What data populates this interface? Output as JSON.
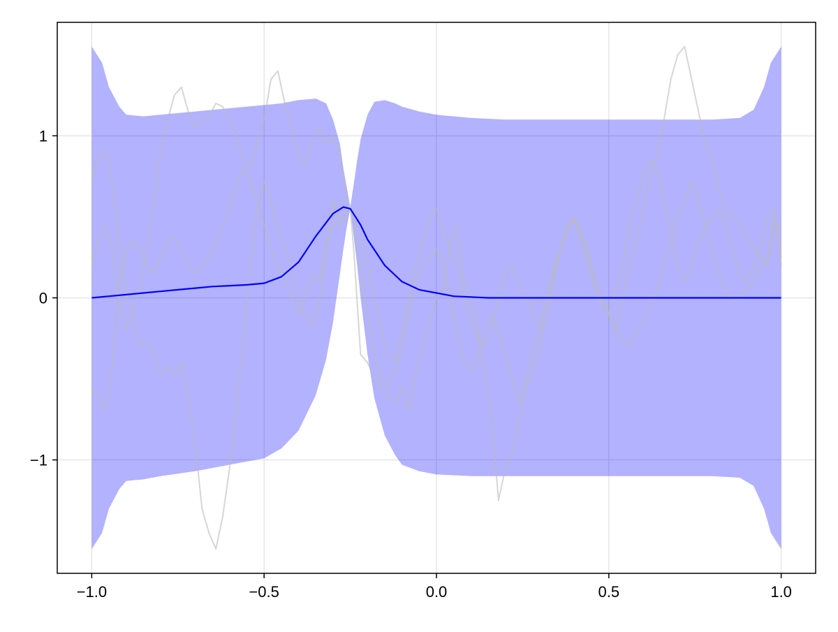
{
  "chart_data": {
    "type": "line",
    "title": "",
    "xlabel": "",
    "ylabel": "",
    "xlim": [
      -1.1,
      1.1
    ],
    "ylim": [
      -1.7,
      1.7
    ],
    "grid": true,
    "legend": "none",
    "x_ticks": [
      {
        "value": -1.0,
        "label": "−1.0"
      },
      {
        "value": -0.5,
        "label": "−0.5"
      },
      {
        "value": 0.0,
        "label": "0.0"
      },
      {
        "value": 0.5,
        "label": "0.5"
      },
      {
        "value": 1.0,
        "label": "1.0"
      }
    ],
    "y_ticks": [
      {
        "value": -1,
        "label": "−1"
      },
      {
        "value": 0,
        "label": "0"
      },
      {
        "value": 1,
        "label": "1"
      }
    ],
    "colors": {
      "band": "#0000ff",
      "band_opacity": 0.3,
      "mean": "#0000ff",
      "samples": "#bbbbbb",
      "grid": "#e6e6e6",
      "frame": "#000000"
    },
    "band": {
      "x": [
        -1.0,
        -0.97,
        -0.95,
        -0.92,
        -0.9,
        -0.85,
        -0.8,
        -0.7,
        -0.6,
        -0.5,
        -0.45,
        -0.4,
        -0.35,
        -0.32,
        -0.3,
        -0.28,
        -0.27,
        -0.26,
        -0.25,
        -0.24,
        -0.23,
        -0.22,
        -0.2,
        -0.18,
        -0.15,
        -0.12,
        -0.1,
        -0.05,
        0.0,
        0.1,
        0.2,
        0.4,
        0.6,
        0.8,
        0.88,
        0.92,
        0.95,
        0.97,
        1.0
      ],
      "upper": [
        1.55,
        1.45,
        1.3,
        1.18,
        1.13,
        1.12,
        1.13,
        1.15,
        1.17,
        1.19,
        1.2,
        1.22,
        1.23,
        1.2,
        1.1,
        0.95,
        0.8,
        0.68,
        0.56,
        0.7,
        0.85,
        0.98,
        1.13,
        1.21,
        1.22,
        1.2,
        1.18,
        1.15,
        1.13,
        1.11,
        1.1,
        1.1,
        1.1,
        1.1,
        1.11,
        1.16,
        1.3,
        1.45,
        1.55
      ],
      "lower": [
        -1.55,
        -1.45,
        -1.3,
        -1.18,
        -1.13,
        -1.12,
        -1.1,
        -1.07,
        -1.03,
        -0.99,
        -0.93,
        -0.82,
        -0.6,
        -0.38,
        -0.15,
        0.15,
        0.3,
        0.44,
        0.55,
        0.38,
        0.2,
        0.0,
        -0.35,
        -0.62,
        -0.85,
        -0.97,
        -1.03,
        -1.07,
        -1.09,
        -1.1,
        -1.1,
        -1.1,
        -1.1,
        -1.1,
        -1.11,
        -1.16,
        -1.3,
        -1.45,
        -1.55
      ]
    },
    "series": [
      {
        "x": [
          -1.0,
          -0.95,
          -0.9,
          -0.85,
          -0.8,
          -0.75,
          -0.7,
          -0.65,
          -0.6,
          -0.55,
          -0.5,
          -0.45,
          -0.4,
          -0.35,
          -0.3,
          -0.27,
          -0.25,
          -0.22,
          -0.2,
          -0.15,
          -0.1,
          -0.05,
          0.0,
          0.05,
          0.1,
          0.15,
          0.2,
          0.25,
          0.3,
          0.35,
          0.4,
          0.45,
          0.5,
          0.55,
          0.6,
          0.65,
          0.7,
          0.75,
          0.8,
          0.85,
          0.9,
          0.95,
          1.0
        ],
        "values": [
          0.0,
          0.01,
          0.02,
          0.03,
          0.04,
          0.05,
          0.06,
          0.07,
          0.075,
          0.08,
          0.09,
          0.13,
          0.22,
          0.38,
          0.52,
          0.56,
          0.55,
          0.45,
          0.36,
          0.2,
          0.1,
          0.05,
          0.03,
          0.01,
          0.005,
          0.0,
          0.0,
          0.0,
          0.0,
          0.0,
          0.0,
          0.0,
          0.0,
          0.0,
          0.0,
          0.0,
          0.0,
          0.0,
          0.0,
          0.0,
          0.0,
          0.0,
          0.0
        ]
      }
    ],
    "samples": [
      {
        "x": [
          -1.0,
          -0.98,
          -0.96,
          -0.94,
          -0.92,
          -0.9,
          -0.88,
          -0.86,
          -0.84,
          -0.82,
          -0.8,
          -0.78,
          -0.76,
          -0.74,
          -0.72,
          -0.7,
          -0.68,
          -0.66,
          -0.64,
          -0.62,
          -0.6,
          -0.58,
          -0.56,
          -0.54,
          -0.52,
          -0.5,
          -0.48,
          -0.46,
          -0.44,
          -0.42,
          -0.4,
          -0.38,
          -0.36,
          -0.34,
          -0.32,
          -0.3,
          -0.28,
          -0.26,
          -0.25,
          -0.24,
          -0.22,
          -0.2,
          -0.18,
          -0.16,
          -0.14,
          -0.12,
          -0.1,
          -0.08,
          -0.06,
          -0.04,
          -0.02,
          0.0,
          0.02,
          0.04,
          0.06,
          0.08,
          0.1,
          0.12,
          0.14,
          0.16,
          0.18,
          0.2,
          0.22,
          0.24,
          0.26,
          0.28,
          0.3,
          0.32,
          0.34,
          0.36,
          0.38,
          0.4,
          0.42,
          0.44,
          0.46,
          0.48,
          0.5,
          0.52,
          0.54,
          0.56,
          0.58,
          0.6,
          0.62,
          0.64,
          0.66,
          0.68,
          0.7,
          0.72,
          0.74,
          0.76,
          0.78,
          0.8,
          0.82,
          0.84,
          0.86,
          0.88,
          0.9,
          0.92,
          0.94,
          0.96,
          0.98,
          1.0
        ],
        "values": [
          0.73,
          0.88,
          0.9,
          0.7,
          0.35,
          0.0,
          -0.12,
          -0.3,
          -0.28,
          -0.35,
          -0.47,
          -0.42,
          -0.48,
          -0.4,
          -0.6,
          -0.9,
          -1.3,
          -1.45,
          -1.55,
          -1.35,
          -1.05,
          -0.65,
          -0.25,
          0.2,
          0.55,
          0.72,
          0.6,
          0.42,
          0.3,
          0.18,
          0.0,
          -0.1,
          -0.18,
          -0.03,
          0.3,
          0.6,
          0.45,
          0.5,
          0.55,
          0.3,
          -0.35,
          -0.4,
          -0.5,
          -0.55,
          -0.6,
          -0.65,
          -0.55,
          -0.7,
          -0.45,
          -0.3,
          -0.15,
          0.0,
          0.05,
          0.35,
          0.45,
          0.1,
          0.0,
          -0.2,
          -0.45,
          -0.75,
          -1.25,
          -1.05,
          -0.95,
          -0.75,
          -0.5,
          -0.3,
          -0.2,
          0.0,
          0.2,
          0.3,
          0.45,
          0.5,
          0.35,
          0.2,
          0.05,
          -0.05,
          -0.1,
          -0.2,
          0.0,
          0.2,
          0.35,
          0.55,
          0.75,
          0.88,
          1.1,
          1.35,
          1.5,
          1.55,
          1.35,
          1.15,
          0.95,
          0.85,
          0.65,
          0.55,
          0.5,
          0.45,
          0.38,
          0.3,
          0.25,
          0.2,
          0.45,
          0.43
        ]
      },
      {
        "x": [
          -1.0,
          -0.98,
          -0.96,
          -0.94,
          -0.92,
          -0.9,
          -0.88,
          -0.86,
          -0.84,
          -0.82,
          -0.8,
          -0.78,
          -0.76,
          -0.74,
          -0.72,
          -0.7,
          -0.68,
          -0.66,
          -0.64,
          -0.62,
          -0.6,
          -0.58,
          -0.56,
          -0.54,
          -0.52,
          -0.5,
          -0.48,
          -0.46,
          -0.44,
          -0.42,
          -0.4,
          -0.38,
          -0.36,
          -0.34,
          -0.32,
          -0.3,
          -0.28,
          -0.26,
          -0.25,
          -0.24,
          -0.22,
          -0.2,
          -0.18,
          -0.16,
          -0.14,
          -0.12,
          -0.1,
          -0.08,
          -0.06,
          -0.04,
          -0.02,
          0.0,
          0.02,
          0.04,
          0.06,
          0.08,
          0.1,
          0.12,
          0.14,
          0.16,
          0.18,
          0.2,
          0.22,
          0.24,
          0.26,
          0.28,
          0.3,
          0.32,
          0.34,
          0.36,
          0.38,
          0.4,
          0.42,
          0.44,
          0.46,
          0.48,
          0.5,
          0.52,
          0.54,
          0.56,
          0.58,
          0.6,
          0.62,
          0.64,
          0.66,
          0.68,
          0.7,
          0.72,
          0.74,
          0.76,
          0.78,
          0.8,
          0.82,
          0.84,
          0.86,
          0.88,
          0.9,
          0.92,
          0.94,
          0.96,
          0.98,
          1.0
        ],
        "values": [
          0.2,
          0.35,
          0.45,
          0.3,
          0.0,
          -0.2,
          -0.1,
          0.1,
          0.3,
          0.6,
          0.9,
          1.1,
          1.25,
          1.3,
          1.15,
          1.05,
          1.08,
          1.12,
          1.2,
          1.18,
          1.1,
          1.0,
          0.85,
          0.8,
          0.95,
          1.1,
          1.35,
          1.4,
          1.2,
          1.05,
          0.88,
          0.82,
          0.95,
          1.05,
          0.95,
          1.0,
          0.9,
          0.6,
          0.55,
          0.5,
          0.2,
          -0.1,
          -0.35,
          -0.5,
          -0.55,
          -0.45,
          -0.3,
          -0.1,
          0.1,
          0.2,
          0.25,
          0.3,
          0.2,
          0.0,
          -0.2,
          -0.4,
          -0.45,
          -0.35,
          -0.2,
          -0.1,
          -0.2,
          -0.35,
          -0.5,
          -0.65,
          -0.55,
          -0.45,
          -0.3,
          -0.1,
          0.1,
          0.3,
          0.45,
          0.5,
          0.4,
          0.25,
          0.1,
          0.0,
          -0.1,
          -0.2,
          -0.25,
          -0.3,
          -0.2,
          -0.15,
          -0.05,
          0.05,
          0.2,
          0.35,
          0.5,
          0.6,
          0.72,
          0.6,
          0.45,
          0.3,
          0.15,
          0.05,
          -0.02,
          0.0,
          0.05,
          0.1,
          0.2,
          0.25,
          0.5,
          0.25
        ]
      },
      {
        "x": [
          -1.0,
          -0.98,
          -0.96,
          -0.94,
          -0.92,
          -0.9,
          -0.88,
          -0.86,
          -0.84,
          -0.82,
          -0.8,
          -0.78,
          -0.76,
          -0.74,
          -0.72,
          -0.7,
          -0.68,
          -0.66,
          -0.64,
          -0.62,
          -0.6,
          -0.58,
          -0.56,
          -0.54,
          -0.52,
          -0.5,
          -0.48,
          -0.46,
          -0.44,
          -0.42,
          -0.4,
          -0.38,
          -0.36,
          -0.34,
          -0.32,
          -0.3,
          -0.28,
          -0.26,
          -0.25,
          -0.24,
          -0.22,
          -0.2,
          -0.18,
          -0.16,
          -0.14,
          -0.12,
          -0.1,
          -0.08,
          -0.06,
          -0.04,
          -0.02,
          0.0,
          0.02,
          0.04,
          0.06,
          0.08,
          0.1,
          0.12,
          0.14,
          0.16,
          0.18,
          0.2,
          0.22,
          0.24,
          0.26,
          0.28,
          0.3,
          0.32,
          0.34,
          0.36,
          0.38,
          0.4,
          0.42,
          0.44,
          0.46,
          0.48,
          0.5,
          0.52,
          0.54,
          0.56,
          0.58,
          0.6,
          0.62,
          0.64,
          0.66,
          0.68,
          0.7,
          0.72,
          0.74,
          0.76,
          0.78,
          0.8,
          0.82,
          0.84,
          0.86,
          0.88,
          0.9,
          0.92,
          0.94,
          0.96,
          0.98,
          1.0
        ],
        "values": [
          -0.55,
          -0.62,
          -0.7,
          -0.4,
          0.1,
          0.3,
          0.35,
          0.3,
          0.2,
          0.15,
          0.25,
          0.35,
          0.38,
          0.3,
          0.2,
          0.15,
          0.2,
          0.25,
          0.35,
          0.45,
          0.55,
          0.7,
          0.8,
          0.72,
          0.6,
          0.45,
          0.3,
          0.2,
          0.1,
          0.0,
          -0.1,
          0.0,
          0.15,
          0.1,
          0.3,
          0.45,
          0.5,
          0.55,
          0.55,
          0.5,
          0.45,
          0.2,
          0.0,
          -0.2,
          -0.35,
          -0.4,
          -0.2,
          0.0,
          0.2,
          0.35,
          0.5,
          0.55,
          0.4,
          0.3,
          0.2,
          0.0,
          -0.15,
          -0.25,
          -0.3,
          -0.2,
          0.0,
          0.15,
          0.2,
          0.1,
          0.0,
          -0.1,
          -0.2,
          0.0,
          0.15,
          0.3,
          0.42,
          0.48,
          0.4,
          0.3,
          0.1,
          0.0,
          -0.1,
          0.05,
          0.2,
          0.45,
          0.6,
          0.75,
          0.85,
          0.8,
          0.6,
          0.4,
          0.2,
          0.1,
          0.2,
          0.35,
          0.45,
          0.5,
          0.55,
          0.45,
          0.3,
          0.15,
          0.1,
          0.2,
          0.3,
          0.5,
          0.55,
          0.2
        ]
      }
    ]
  }
}
